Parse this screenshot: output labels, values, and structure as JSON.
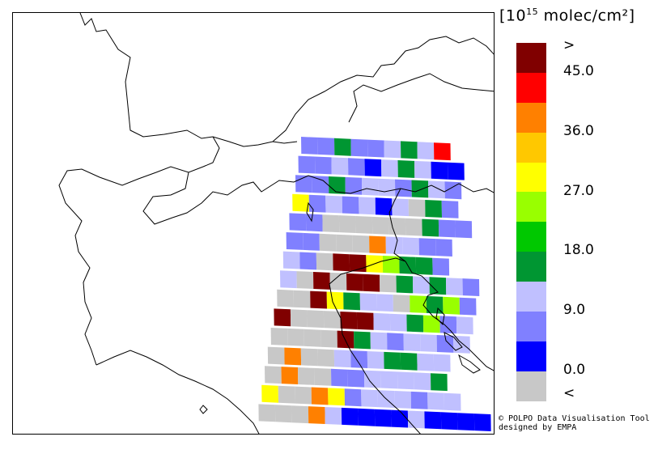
{
  "legend": {
    "title_base": "[10",
    "title_exp": "15",
    "title_unit": " molec/cm²]",
    "colors": [
      "#800000",
      "#ff0000",
      "#ff8000",
      "#ffc800",
      "#ffff00",
      "#99ff00",
      "#00c800",
      "#009632",
      "#c0c0ff",
      "#8080ff",
      "#0000ff",
      "#c8c8c8"
    ],
    "labels": [
      ">",
      "45.0",
      "36.0",
      "27.0",
      "18.0",
      "9.0",
      "0.0",
      "<"
    ]
  },
  "credit": {
    "line1": "© POLPO Data Visualisation Tool",
    "line2": "  designed by EMPA"
  },
  "pixel_codes": {
    "note_colors": "d=dark red, r=red, o=orange, y=yellow-orange, Y=yellow, l=lime, g=green, G=dark green, p=lavender, m=medium blue, b=blue, s=grey"
  },
  "swath_rows": [
    "mmGmmpGpr",
    "mmpmbpGpbb",
    "mmGmppmGpm",
    "YmpmpbpsGm",
    "mmssssssGmm",
    "mmsssoppmm",
    "pmsddYlGGm",
    "psdsddsGpGpm",
    "ssdYGppslGlm",
    "dsssddppGlmp",
    "ssssdGpmppmp",
    "sosspmpGGpp",
    "sossmmppppG",
    "YssoYmpppmpp",
    "sssopbbbbpbbbb"
  ]
}
